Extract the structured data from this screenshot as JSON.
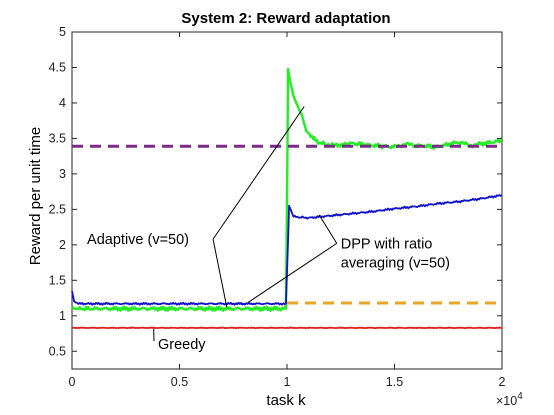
{
  "chart_data": {
    "type": "line",
    "title": "System 2: Reward adaptation",
    "xlabel": "task k",
    "ylabel": "Reward per unit time",
    "x_exponent_label": "×10",
    "x_exponent_power": "4",
    "xlim": [
      0,
      20000
    ],
    "ylim": [
      0.25,
      5
    ],
    "xticks": [
      0,
      5000,
      10000,
      15000,
      20000
    ],
    "xtick_labels": [
      "0",
      "0.5",
      "1",
      "1.5",
      "2"
    ],
    "yticks": [
      0.5,
      1,
      1.5,
      2,
      2.5,
      3,
      3.5,
      4,
      4.5,
      5
    ],
    "ytick_labels": [
      "0.5",
      "1",
      "1.5",
      "2",
      "2.5",
      "3",
      "3.5",
      "4",
      "4.5",
      "5"
    ],
    "grid": false,
    "series": [
      {
        "color": "#22ee22",
        "style": "solid",
        "x": [
          0,
          100,
          300,
          1000,
          5000,
          9950,
          10000,
          10050,
          10150,
          10300,
          10500,
          10700,
          10900,
          11100,
          11400,
          11800,
          12300,
          13000,
          14000,
          15000,
          15500,
          16000,
          17000,
          18000,
          18500,
          19000,
          20000
        ],
        "y": [
          1.13,
          1.1,
          1.1,
          1.1,
          1.1,
          1.1,
          2.6,
          4.48,
          4.3,
          4.1,
          3.95,
          3.82,
          3.6,
          3.55,
          3.45,
          3.42,
          3.4,
          3.43,
          3.4,
          3.38,
          3.42,
          3.4,
          3.38,
          3.45,
          3.4,
          3.42,
          3.47
        ]
      },
      {
        "color": "#1111cc",
        "style": "solid",
        "x": [
          0,
          100,
          300,
          1000,
          5000,
          9950,
          10000,
          10100,
          10300,
          10600,
          11000,
          12000,
          13000,
          14000,
          15000,
          16000,
          17000,
          18000,
          19000,
          20000
        ],
        "y": [
          1.35,
          1.2,
          1.17,
          1.17,
          1.17,
          1.17,
          1.6,
          2.55,
          2.4,
          2.39,
          2.38,
          2.41,
          2.44,
          2.47,
          2.51,
          2.54,
          2.58,
          2.61,
          2.65,
          2.7
        ]
      },
      {
        "color": "#dd2222",
        "style": "solid",
        "x": [
          0,
          20000
        ],
        "y": [
          0.83,
          0.83
        ]
      },
      {
        "color": "#7b2a8a",
        "style": "dashed",
        "x": [
          0,
          20000
        ],
        "y": [
          3.39,
          3.39
        ]
      },
      {
        "color": "#e8a52a",
        "style": "dashed",
        "x": [
          10000,
          20000
        ],
        "y": [
          1.18,
          1.18
        ]
      }
    ],
    "annotations": [
      {
        "label": "Adaptive (v=50)",
        "lines": [
          "Adaptive (v=50)"
        ],
        "text_at": [
          700,
          2.01
        ],
        "pointers": [
          [
            7200,
            1.12
          ],
          [
            10800,
            3.95
          ]
        ]
      },
      {
        "label": "DPP with ratio averaging (v=50)",
        "lines": [
          "DPP with ratio",
          "averaging (v=50)"
        ],
        "text_at": [
          12500,
          1.95
        ],
        "pointers": [
          [
            8200,
            1.19
          ],
          [
            11500,
            2.42
          ]
        ]
      },
      {
        "label": "Greedy",
        "lines": [
          "Greedy"
        ],
        "text_at": [
          4000,
          0.53
        ],
        "pointers": [
          [
            3800,
            0.82
          ]
        ]
      }
    ]
  }
}
